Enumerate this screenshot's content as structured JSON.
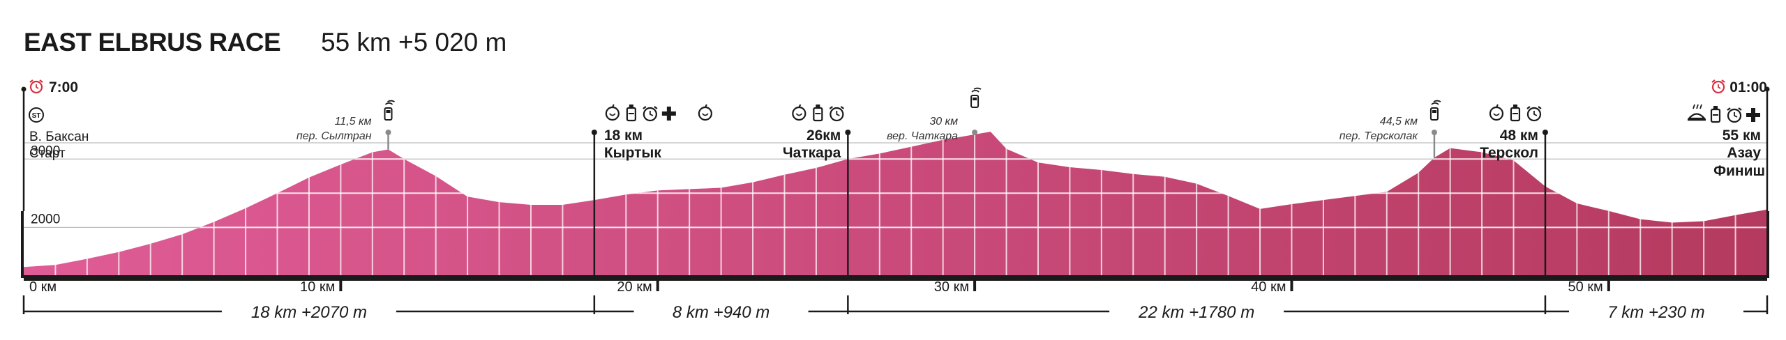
{
  "race": {
    "title": "EAST ELBRUS RACE",
    "stats": "55 km  +5 020 m"
  },
  "colors": {
    "profile_start": "#df5c96",
    "profile_end": "#b53a5f",
    "axis": "#1a1a1a",
    "grid": "#bdbdbd",
    "alarm": "#d63040"
  },
  "chart_data": {
    "type": "area",
    "title": "",
    "xlabel": "",
    "ylabel": "",
    "xlim": [
      0,
      55
    ],
    "ylim": [
      1300,
      3900
    ],
    "y_gridlines": [
      2000,
      3000
    ],
    "x_ticks": [
      {
        "km": 0,
        "label": "0 км"
      },
      {
        "km": 10,
        "label": "10 км"
      },
      {
        "km": 20,
        "label": "20 км"
      },
      {
        "km": 30,
        "label": "30 км"
      },
      {
        "km": 40,
        "label": "40 км"
      },
      {
        "km": 50,
        "label": "50 км"
      }
    ],
    "y_tick_labels": [
      {
        "value": 3000,
        "label": "3000"
      },
      {
        "value": 2000,
        "label": "2000"
      }
    ],
    "profile_km": [
      0,
      1,
      2,
      3,
      4,
      5,
      6,
      7,
      8,
      9,
      10,
      11,
      11.5,
      12,
      13,
      14,
      15,
      16,
      17,
      18,
      19,
      20,
      21,
      22,
      23,
      24,
      25,
      26,
      27,
      28,
      29,
      30,
      30.5,
      31,
      32,
      33,
      34,
      35,
      36,
      37,
      38,
      39,
      40,
      41,
      42,
      43,
      44,
      44.5,
      45,
      46,
      47,
      48,
      49,
      50,
      51,
      52,
      53,
      54,
      55
    ],
    "profile_elev": [
      1420,
      1450,
      1540,
      1640,
      1760,
      1900,
      2080,
      2280,
      2500,
      2730,
      2920,
      3100,
      3140,
      3000,
      2750,
      2450,
      2370,
      2330,
      2330,
      2400,
      2480,
      2540,
      2560,
      2580,
      2660,
      2770,
      2870,
      3000,
      3080,
      3180,
      3280,
      3360,
      3400,
      3150,
      2950,
      2880,
      2840,
      2780,
      2740,
      2640,
      2460,
      2270,
      2340,
      2400,
      2460,
      2520,
      2800,
      3020,
      3160,
      3100,
      2980,
      2600,
      2350,
      2240,
      2120,
      2070,
      2090,
      2180,
      2260
    ],
    "checkpoints": [
      {
        "km": 0,
        "name": "В. Баксан",
        "name2": "Старт",
        "icons": [
          "start-badge-icon"
        ],
        "time": "7:00",
        "dist": ""
      },
      {
        "km": 11.5,
        "ann_dist": "11,5 км",
        "ann_name": "пер. Сылтран",
        "icons": [
          "radio-icon"
        ]
      },
      {
        "km": 18,
        "dist": "18 км",
        "name": "Кыртык",
        "icons": [
          "food-icon",
          "water-icon",
          "cutoff-clock-icon",
          "medical-icon"
        ]
      },
      {
        "km": 21.5,
        "icons": [
          "food-icon"
        ]
      },
      {
        "km": 26,
        "dist": "26км",
        "name": "Чаткара",
        "icons": [
          "food-icon",
          "water-icon",
          "cutoff-clock-icon"
        ]
      },
      {
        "km": 30,
        "ann_dist": "30 км",
        "ann_name": "вер. Чаткара",
        "icons": [
          "radio-icon"
        ]
      },
      {
        "km": 44.5,
        "ann_dist": "44,5 км",
        "ann_name": "пер. Терсколак",
        "icons": [
          "radio-icon"
        ]
      },
      {
        "km": 48,
        "dist": "48 км",
        "name": "Терскол",
        "icons": [
          "food-icon",
          "water-icon",
          "cutoff-clock-icon"
        ]
      },
      {
        "km": 55,
        "dist": "55 км",
        "name": "Азау",
        "name2": "Финиш",
        "icons": [
          "hot-meal-icon",
          "water-icon",
          "cutoff-clock-icon",
          "medical-icon"
        ],
        "time": "01:00"
      }
    ],
    "segments": [
      {
        "from_km": 0,
        "to_km": 18,
        "label": "18 km +2070 m"
      },
      {
        "from_km": 18,
        "to_km": 26,
        "label": "8 km +940 m"
      },
      {
        "from_km": 26,
        "to_km": 48,
        "label": "22 km +1780 m"
      },
      {
        "from_km": 48,
        "to_km": 55,
        "label": "7 km +230 m"
      }
    ]
  }
}
